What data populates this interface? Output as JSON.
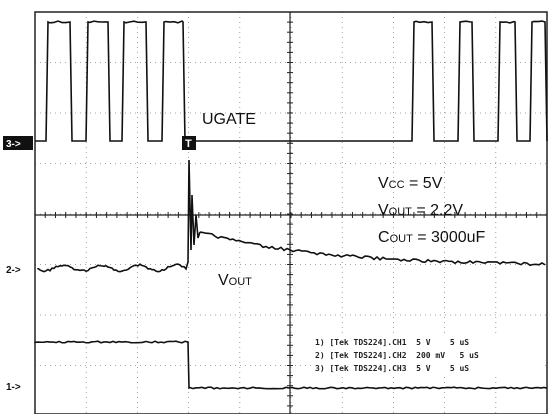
{
  "markers": {
    "ch3": "3->",
    "ch2": "2->",
    "ch1": "1->",
    "trigger": "T"
  },
  "labels": {
    "ugate": "UGATE",
    "vcc": {
      "main": "V",
      "sub": "CC",
      "rest": " = 5V"
    },
    "vout_value": {
      "main": "V",
      "sub": "OUT",
      "rest": " = 2.2V"
    },
    "cout": {
      "main": "C",
      "sub": "OUT",
      "rest": " = 3000uF"
    },
    "vout_trace": {
      "main": "V",
      "sub": "OUT"
    }
  },
  "legend": [
    "1) [Tek TDS224].CH1  5 V    5 uS",
    "2) [Tek TDS224].CH2  200 mV   5 uS",
    "3) [Tek TDS224].CH3  5 V    5 uS"
  ]
}
